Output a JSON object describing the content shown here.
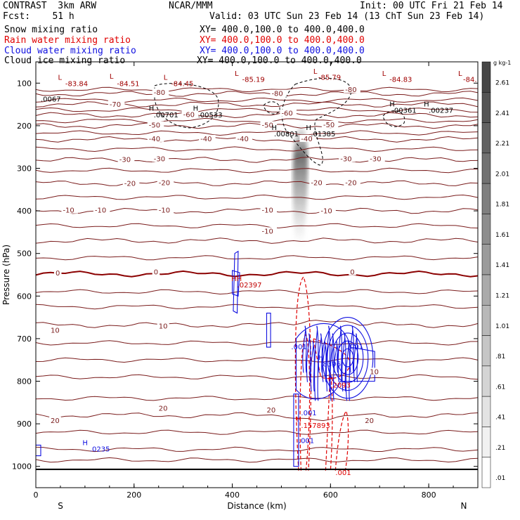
{
  "header": {
    "model": "CONTRAST  3km ARW",
    "center": "NCAR/MMM",
    "init": "Init: 00 UTC Fri 21 Feb 14",
    "fcst": "Fcst:    51 h",
    "valid": "Valid: 03 UTC Sun 23 Feb 14 (13 ChT Sun 23 Feb 14)",
    "fields": [
      {
        "name": "Snow mixing ratio",
        "xy": "XY= 400.0,100.0 to 400.0,400.0",
        "color": "#000000"
      },
      {
        "name": "Rain water mixing ratio",
        "xy": "XY= 400.0,100.0 to 400.0,400.0",
        "color": "#e00000"
      },
      {
        "name": "Cloud water mixing ratio",
        "xy": "XY= 400.0,100.0 to 400.0,400.0",
        "color": "#1010e0"
      },
      {
        "name": "Cloud ice mixing ratio",
        "xy": "XY= 400.0,100.0 to 400.0,400.0",
        "color": "#000000"
      }
    ]
  },
  "chart_data": {
    "type": "cross-section contour",
    "xlabel": "Distance (km)",
    "ylabel": "Pressure (hPa)",
    "xlim": [
      0,
      900
    ],
    "ylim": [
      1050,
      50
    ],
    "x_ticks": [
      0,
      200,
      400,
      600,
      800
    ],
    "y_ticks": [
      100,
      200,
      300,
      400,
      500,
      600,
      700,
      800,
      900,
      1000
    ],
    "x_end_labels": {
      "left": "S",
      "right": "N"
    },
    "temperature_contours": [
      {
        "label": "-80",
        "p": 125
      },
      {
        "label": "-70",
        "p": 150
      },
      {
        "label": "-60",
        "p": 175
      },
      {
        "label": "-50",
        "p": 200
      },
      {
        "label": "-40",
        "p": 232
      },
      {
        "label": "-30",
        "p": 280
      },
      {
        "label": "-20",
        "p": 335
      },
      {
        "label": "-10",
        "p": 400
      },
      {
        "label": "-10",
        "p": 470
      },
      {
        "label": "0",
        "p": 548
      },
      {
        "label": "10",
        "p": 668
      },
      {
        "label": "20",
        "p": 880
      }
    ],
    "temperature_labels": [
      {
        "text": "-80",
        "x": 240,
        "p": 124
      },
      {
        "text": "-80",
        "x": 630,
        "p": 118
      },
      {
        "text": "-80",
        "x": 480,
        "p": 127
      },
      {
        "text": "-70",
        "x": 150,
        "p": 152
      },
      {
        "text": "-60",
        "x": 300,
        "p": 176
      },
      {
        "text": "-60",
        "x": 500,
        "p": 173
      },
      {
        "text": "-50",
        "x": 230,
        "p": 201
      },
      {
        "text": "-50",
        "x": 460,
        "p": 201
      },
      {
        "text": "-50",
        "x": 585,
        "p": 200
      },
      {
        "text": "-40",
        "x": 230,
        "p": 233
      },
      {
        "text": "-40",
        "x": 335,
        "p": 233
      },
      {
        "text": "-40",
        "x": 410,
        "p": 233
      },
      {
        "text": "-40",
        "x": 540,
        "p": 233
      },
      {
        "text": "-30",
        "x": 170,
        "p": 282
      },
      {
        "text": "-30",
        "x": 240,
        "p": 280
      },
      {
        "text": "-30",
        "x": 620,
        "p": 280
      },
      {
        "text": "-30",
        "x": 680,
        "p": 280
      },
      {
        "text": "-20",
        "x": 180,
        "p": 338
      },
      {
        "text": "-20",
        "x": 250,
        "p": 336
      },
      {
        "text": "-20",
        "x": 560,
        "p": 336
      },
      {
        "text": "-20",
        "x": 630,
        "p": 336
      },
      {
        "text": "-10",
        "x": 55,
        "p": 401
      },
      {
        "text": "-10",
        "x": 120,
        "p": 401
      },
      {
        "text": "-10",
        "x": 250,
        "p": 401
      },
      {
        "text": "-10",
        "x": 460,
        "p": 401
      },
      {
        "text": "-10",
        "x": 580,
        "p": 402
      },
      {
        "text": "-10",
        "x": 460,
        "p": 450
      },
      {
        "text": "0",
        "x": 40,
        "p": 548
      },
      {
        "text": "0",
        "x": 240,
        "p": 546
      },
      {
        "text": "0",
        "x": 640,
        "p": 546
      },
      {
        "text": "10",
        "x": 30,
        "p": 683
      },
      {
        "text": "10",
        "x": 250,
        "p": 673
      },
      {
        "text": "10",
        "x": 680,
        "p": 780
      },
      {
        "text": "20",
        "x": 250,
        "p": 866
      },
      {
        "text": "20",
        "x": 30,
        "p": 895
      },
      {
        "text": "20",
        "x": 470,
        "p": 870
      },
      {
        "text": "20",
        "x": 670,
        "p": 895
      }
    ],
    "surface_pressure": 1007,
    "extrema": [
      {
        "text": "L",
        "x": 45,
        "p": 92
      },
      {
        "text": "-83.84",
        "x": 60,
        "p": 107
      },
      {
        "text": "L",
        "x": 150,
        "p": 90
      },
      {
        "text": "-84.51",
        "x": 165,
        "p": 107
      },
      {
        "text": "L",
        "x": 260,
        "p": 92
      },
      {
        "text": "-84.45",
        "x": 275,
        "p": 107
      },
      {
        "text": "L",
        "x": 405,
        "p": 83
      },
      {
        "text": "-85.19",
        "x": 420,
        "p": 97
      },
      {
        "text": "L",
        "x": 565,
        "p": 78
      },
      {
        "text": "-85.79",
        "x": 575,
        "p": 92
      },
      {
        "text": "L",
        "x": 705,
        "p": 83
      },
      {
        "text": "-84.83",
        "x": 720,
        "p": 97
      },
      {
        "text": "L",
        "x": 860,
        "p": 83
      },
      {
        "text": "-84.",
        "x": 870,
        "p": 97
      },
      {
        "text": ".0067",
        "x": 10,
        "p": 143
      },
      {
        "text": "H",
        "x": 230,
        "p": 165
      },
      {
        "text": ".00701",
        "x": 240,
        "p": 180
      },
      {
        "text": "H",
        "x": 320,
        "p": 165
      },
      {
        "text": ".00533",
        "x": 330,
        "p": 180
      },
      {
        "text": "H",
        "x": 480,
        "p": 210
      },
      {
        "text": ".00801",
        "x": 485,
        "p": 225
      },
      {
        "text": "H",
        "x": 550,
        "p": 210
      },
      {
        "text": ".01385",
        "x": 560,
        "p": 225
      },
      {
        "text": "H",
        "x": 720,
        "p": 155
      },
      {
        "text": ".00361",
        "x": 725,
        "p": 170
      },
      {
        "text": "H",
        "x": 790,
        "p": 155
      },
      {
        "text": ".00237",
        "x": 800,
        "p": 170
      },
      {
        "text": "HH",
        "x": 398,
        "p": 565
      },
      {
        "text": ".02397",
        "x": 410,
        "p": 580
      },
      {
        "text": ".001",
        "x": 520,
        "p": 725
      },
      {
        "text": ".001",
        "x": 635,
        "p": 725
      },
      {
        "text": "H",
        "x": 575,
        "p": 750
      },
      {
        "text": ".8396",
        "x": 580,
        "p": 765
      },
      {
        "text": "H",
        "x": 595,
        "p": 800
      },
      {
        "text": ".2093",
        "x": 600,
        "p": 815
      },
      {
        "text": ".001",
        "x": 540,
        "p": 880
      },
      {
        "text": "H",
        "x": 530,
        "p": 895
      },
      {
        "text": ".157893",
        "x": 540,
        "p": 910
      },
      {
        "text": ".001",
        "x": 535,
        "p": 945
      },
      {
        "text": "H",
        "x": 95,
        "p": 950
      },
      {
        "text": ".0235",
        "x": 110,
        "p": 965
      },
      {
        "text": ".001",
        "x": 610,
        "p": 1020
      }
    ],
    "shading": {
      "label": "g kg-1",
      "levels": [
        "2.61",
        "2.41",
        "2.21",
        "2.01",
        "1.81",
        "1.61",
        "1.41",
        "1.21",
        "1.01",
        ".81",
        ".61",
        ".41",
        ".21",
        ".01"
      ]
    }
  }
}
